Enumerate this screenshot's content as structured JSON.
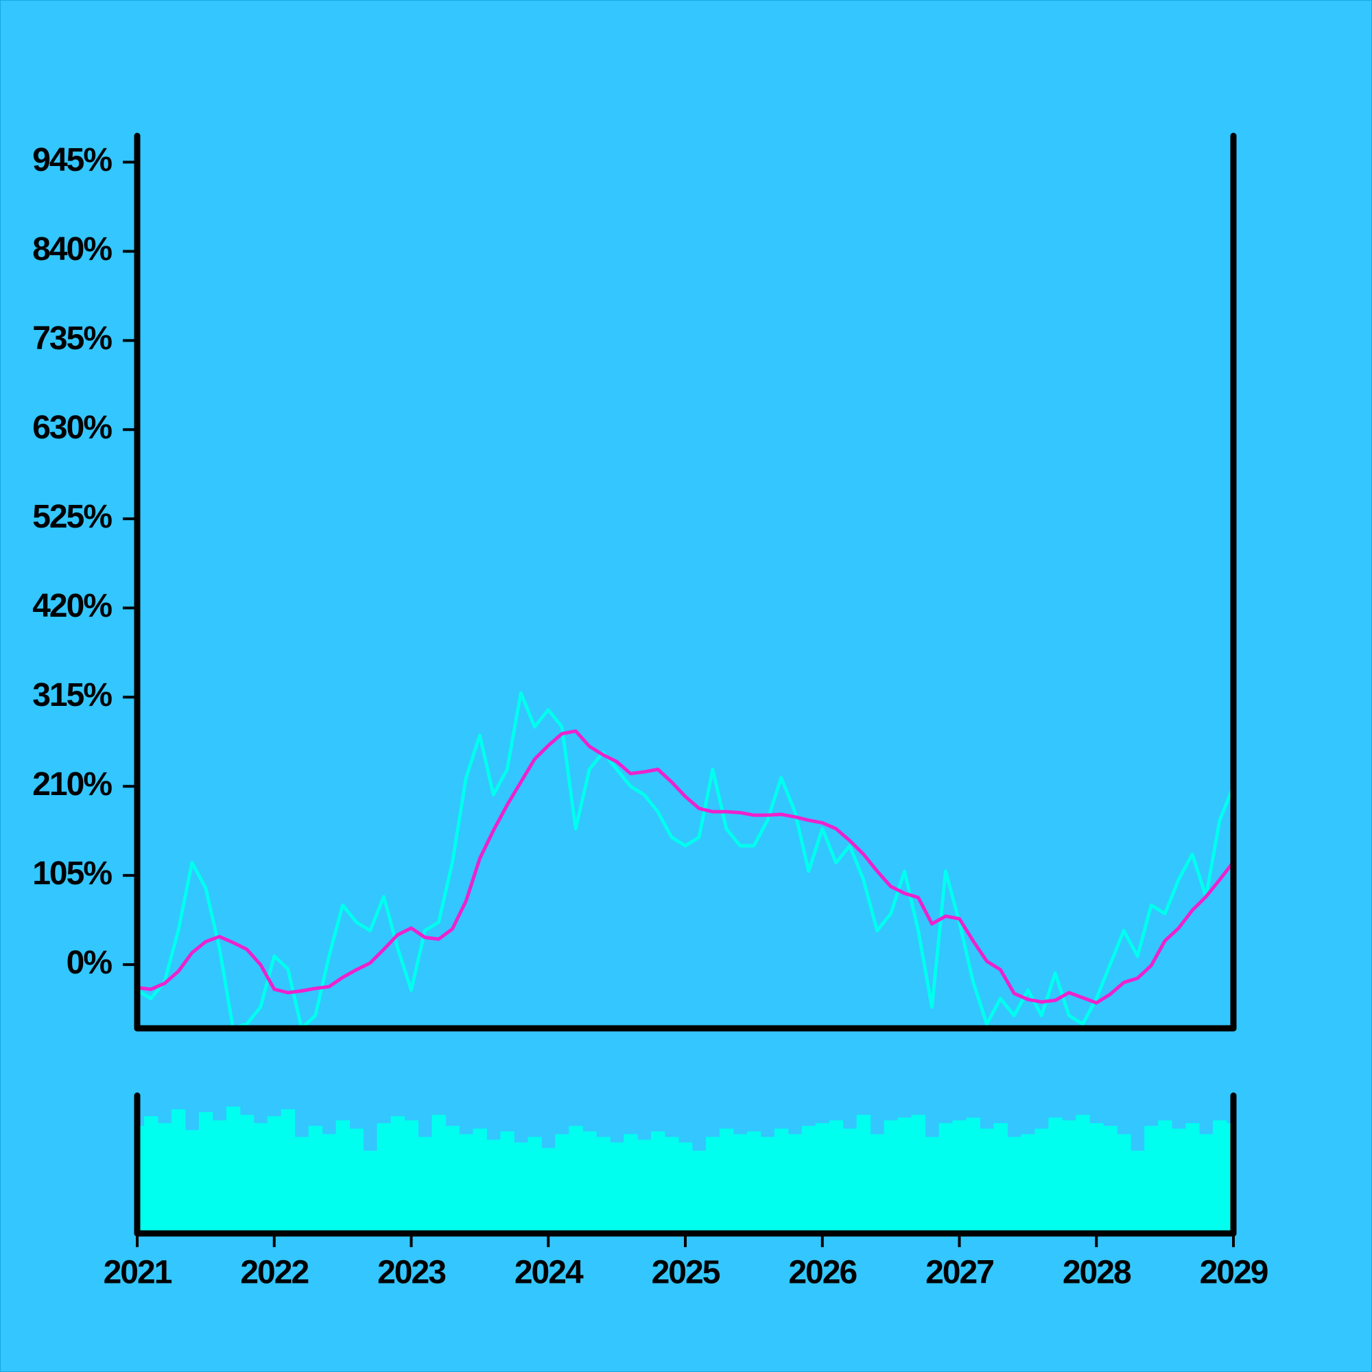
{
  "chart_data": [
    {
      "type": "line",
      "x": [
        2021.0,
        2021.1,
        2021.2,
        2021.3,
        2021.4,
        2021.5,
        2021.6,
        2021.7,
        2021.8,
        2021.9,
        2022.0,
        2022.1,
        2022.2,
        2022.3,
        2022.4,
        2022.5,
        2022.6,
        2022.7,
        2022.8,
        2022.9,
        2023.0,
        2023.1,
        2023.2,
        2023.3,
        2023.4,
        2023.5,
        2023.6,
        2023.7,
        2023.8,
        2023.9,
        2024.0,
        2024.1,
        2024.2,
        2024.3,
        2024.4,
        2024.5,
        2024.6,
        2024.7,
        2024.8,
        2024.9,
        2025.0,
        2025.1,
        2025.2,
        2025.3,
        2025.4,
        2025.5,
        2025.6,
        2025.7,
        2025.8,
        2025.9,
        2026.0,
        2026.1,
        2026.2,
        2026.3,
        2026.4,
        2026.5,
        2026.6,
        2026.7,
        2026.8,
        2026.9,
        2027.0,
        2027.1,
        2027.2,
        2027.3,
        2027.4,
        2027.5,
        2027.6,
        2027.7,
        2027.8,
        2027.9,
        2028.0,
        2028.1,
        2028.2,
        2028.3,
        2028.4,
        2028.5,
        2028.6,
        2028.7,
        2028.8,
        2028.9,
        2029.0
      ],
      "series": [
        {
          "color": "#00ffee",
          "values": [
            -30,
            -40,
            -20,
            40,
            120,
            90,
            20,
            -75,
            -70,
            -50,
            10,
            -5,
            -75,
            -60,
            10,
            70,
            50,
            40,
            80,
            20,
            -30,
            40,
            50,
            120,
            220,
            270,
            200,
            230,
            320,
            280,
            300,
            280,
            160,
            230,
            250,
            230,
            210,
            200,
            180,
            150,
            140,
            150,
            230,
            160,
            140,
            140,
            170,
            220,
            180,
            110,
            160,
            120,
            140,
            100,
            40,
            60,
            110,
            40,
            -50,
            110,
            50,
            -20,
            -70,
            -40,
            -60,
            -30,
            -60,
            -10,
            -60,
            -70,
            -40,
            0,
            40,
            10,
            70,
            60,
            100,
            130,
            80,
            170,
            210
          ]
        },
        {
          "color": "#ee22cc",
          "values": [
            -27,
            -29,
            -22,
            -8,
            14,
            27,
            33,
            26,
            18,
            0,
            -29,
            -33,
            -31,
            -28,
            -26,
            -15,
            -6,
            2,
            18,
            35,
            43,
            32,
            30,
            42,
            75,
            125,
            158,
            188,
            215,
            242,
            258,
            272,
            275,
            257,
            247,
            239,
            225,
            227,
            230,
            215,
            198,
            184,
            180,
            180,
            179,
            176,
            176,
            177,
            174,
            170,
            167,
            160,
            146,
            130,
            110,
            92,
            84,
            79,
            48,
            57,
            54,
            28,
            4,
            -6,
            -34,
            -41,
            -44,
            -42,
            -33,
            -39,
            -45,
            -35,
            -21,
            -16,
            -1,
            28,
            43,
            64,
            80,
            100,
            121
          ]
        }
      ],
      "xlim": [
        2021,
        2029
      ],
      "ylim": [
        -75,
        976
      ],
      "yticks": [
        {
          "value": 0,
          "label": "0%"
        },
        {
          "value": 105,
          "label": "105%"
        },
        {
          "value": 210,
          "label": "210%"
        },
        {
          "value": 315,
          "label": "315%"
        },
        {
          "value": 420,
          "label": "420%"
        },
        {
          "value": 525,
          "label": "525%"
        },
        {
          "value": 630,
          "label": "630%"
        },
        {
          "value": 735,
          "label": "735%"
        },
        {
          "value": 840,
          "label": "840%"
        },
        {
          "value": 945,
          "label": "945%"
        }
      ]
    },
    {
      "type": "bar",
      "x": [
        2021.0,
        2021.1,
        2021.2,
        2021.3,
        2021.4,
        2021.5,
        2021.6,
        2021.7,
        2021.8,
        2021.9,
        2022.0,
        2022.1,
        2022.2,
        2022.3,
        2022.4,
        2022.5,
        2022.6,
        2022.7,
        2022.8,
        2022.9,
        2023.0,
        2023.1,
        2023.2,
        2023.3,
        2023.4,
        2023.5,
        2023.6,
        2023.7,
        2023.8,
        2023.9,
        2024.0,
        2024.1,
        2024.2,
        2024.3,
        2024.4,
        2024.5,
        2024.6,
        2024.7,
        2024.8,
        2024.9,
        2025.0,
        2025.1,
        2025.2,
        2025.3,
        2025.4,
        2025.5,
        2025.6,
        2025.7,
        2025.8,
        2025.9,
        2026.0,
        2026.1,
        2026.2,
        2026.3,
        2026.4,
        2026.5,
        2026.6,
        2026.7,
        2026.8,
        2026.9,
        2027.0,
        2027.1,
        2027.2,
        2027.3,
        2027.4,
        2027.5,
        2027.6,
        2027.7,
        2027.8,
        2027.9,
        2028.0,
        2028.1,
        2028.2,
        2028.3,
        2028.4,
        2028.5,
        2028.6,
        2028.7,
        2028.8,
        2028.9,
        2029.0
      ],
      "values": [
        78,
        85,
        80,
        90,
        75,
        88,
        82,
        92,
        86,
        80,
        85,
        90,
        70,
        78,
        72,
        82,
        76,
        60,
        80,
        85,
        82,
        70,
        86,
        78,
        72,
        76,
        68,
        74,
        66,
        70,
        62,
        72,
        78,
        74,
        70,
        66,
        72,
        68,
        74,
        70,
        66,
        60,
        70,
        76,
        72,
        74,
        70,
        76,
        72,
        78,
        80,
        82,
        76,
        86,
        72,
        82,
        84,
        86,
        70,
        80,
        82,
        84,
        76,
        80,
        70,
        72,
        76,
        84,
        82,
        86,
        80,
        78,
        72,
        60,
        78,
        82,
        76,
        80,
        72,
        82,
        80
      ],
      "color": "#00ffee",
      "xlim": [
        2021,
        2029
      ],
      "ylim": [
        0,
        100
      ],
      "xticks": [
        2021,
        2022,
        2023,
        2024,
        2025,
        2026,
        2027,
        2028,
        2029
      ]
    }
  ]
}
